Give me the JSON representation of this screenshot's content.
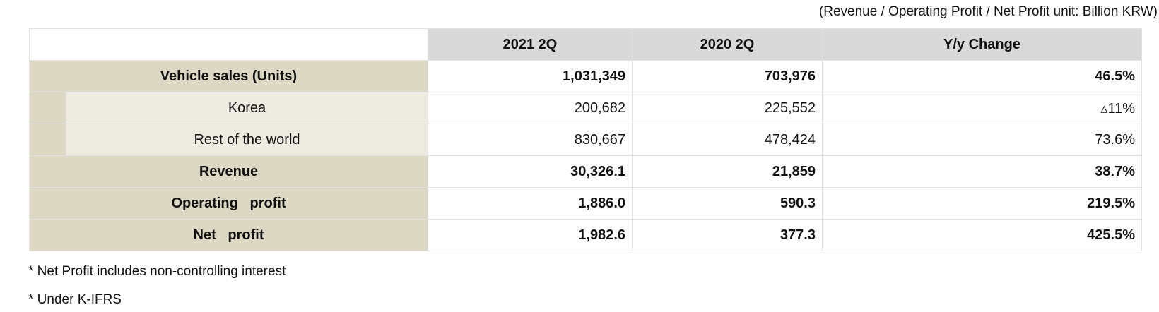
{
  "unit_note": "(Revenue / Operating Profit / Net Profit unit: Billion KRW)",
  "table": {
    "headers": [
      "",
      "2021 2Q",
      "2020 2Q",
      "Y/y  Change"
    ],
    "rows": [
      {
        "label": "Vehicle sales (Units)",
        "q2021": "1,031,349",
        "q2020": "703,976",
        "yoy": "46.5%"
      },
      {
        "label": "Korea",
        "q2021": "200,682",
        "q2020": "225,552",
        "yoy": "▵11%"
      },
      {
        "label": "Rest of the world",
        "q2021": "830,667",
        "q2020": "478,424",
        "yoy": "73.6%"
      },
      {
        "label": "Revenue",
        "q2021": "30,326.1",
        "q2020": "21,859",
        "yoy": "38.7%"
      },
      {
        "label": "Operating   profit",
        "q2021": "1,886.0",
        "q2020": "590.3",
        "yoy": "219.5%"
      },
      {
        "label": "Net   profit",
        "q2021": "1,982.6",
        "q2020": "377.3",
        "yoy": "425.5%"
      }
    ]
  },
  "footnotes": [
    "* Net Profit includes non-controlling interest",
    "* Under K-IFRS"
  ]
}
